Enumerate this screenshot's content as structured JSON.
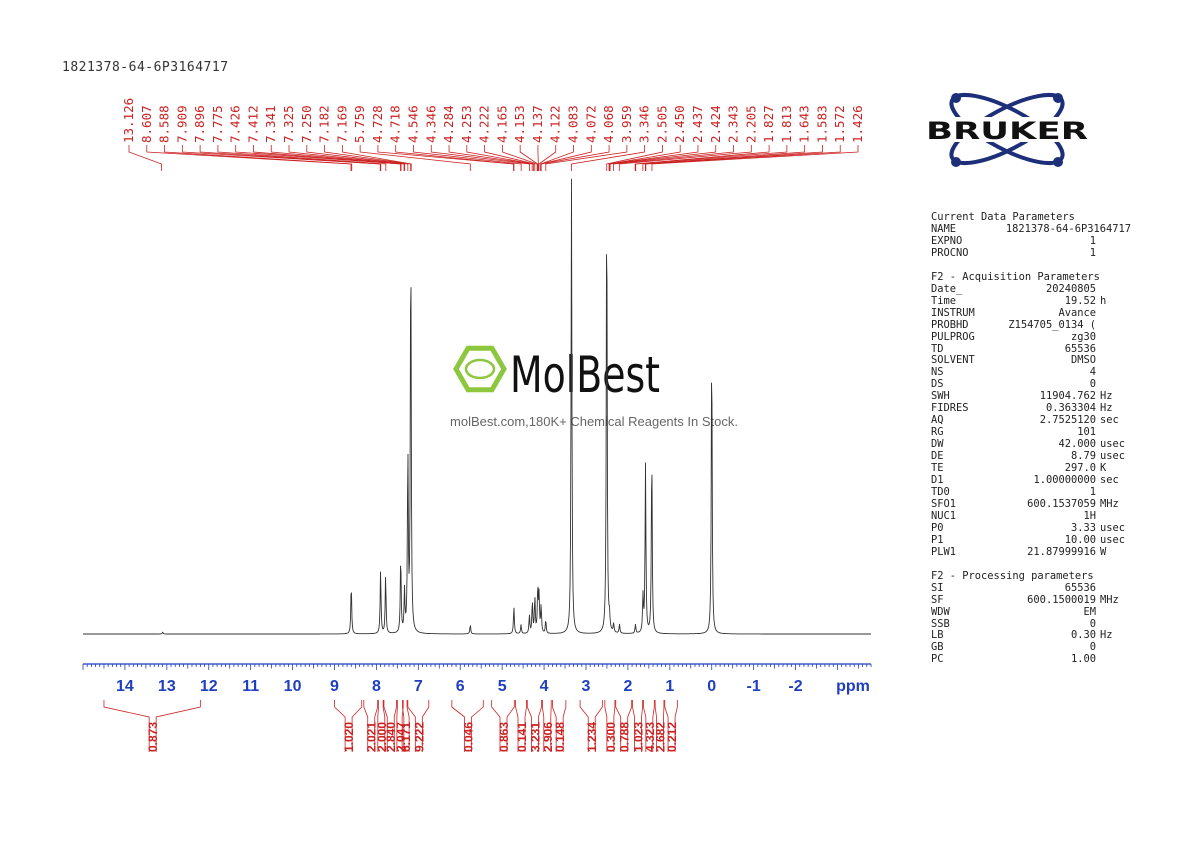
{
  "sample_id": "1821378-64-6P3164717",
  "watermark": {
    "brand": "MolBest",
    "tagline": "molBest.com,180K+ Chemical Reagents In Stock."
  },
  "bruker_logo": {
    "text": "BRUKER"
  },
  "colors": {
    "peak_labels": "#cc2222",
    "axis": "#1f3fbf",
    "spectrum": "#333333",
    "logo_navy": "#1e2f7a",
    "molbest_green": "#8dc63f"
  },
  "chart_data": {
    "type": "line",
    "xlabel": "ppm",
    "xlim": [
      15,
      -3.8
    ],
    "x_ticks": [
      "14",
      "13",
      "12",
      "11",
      "10",
      "9",
      "8",
      "7",
      "6",
      "5",
      "4",
      "3",
      "2",
      "1",
      "0",
      "-1",
      "-2"
    ],
    "peak_labels": [
      "13.126",
      "8.607",
      "8.588",
      "7.909",
      "7.896",
      "7.775",
      "7.426",
      "7.412",
      "7.341",
      "7.325",
      "7.250",
      "7.182",
      "7.169",
      "5.759",
      "4.728",
      "4.718",
      "4.546",
      "4.346",
      "4.284",
      "4.253",
      "4.222",
      "4.165",
      "4.153",
      "4.137",
      "4.122",
      "4.083",
      "4.072",
      "4.068",
      "3.959",
      "3.346",
      "2.505",
      "2.450",
      "2.437",
      "2.424",
      "2.343",
      "2.205",
      "1.827",
      "1.813",
      "1.643",
      "1.583",
      "1.572",
      "1.426"
    ],
    "peak_positions_ppm": [
      13.126,
      8.607,
      8.588,
      7.909,
      7.896,
      7.775,
      7.426,
      7.412,
      7.341,
      7.325,
      7.25,
      7.182,
      7.169,
      5.759,
      4.728,
      4.718,
      4.546,
      4.346,
      4.284,
      4.253,
      4.222,
      4.165,
      4.153,
      4.137,
      4.122,
      4.083,
      4.072,
      4.068,
      3.959,
      3.346,
      2.505,
      2.45,
      2.437,
      2.424,
      2.343,
      2.205,
      1.827,
      1.813,
      1.643,
      1.583,
      1.572,
      1.426
    ],
    "spectrum_peaks": [
      {
        "ppm": 8.6,
        "h": 0.11
      },
      {
        "ppm": 7.9,
        "h": 0.14
      },
      {
        "ppm": 7.78,
        "h": 0.13
      },
      {
        "ppm": 7.42,
        "h": 0.17
      },
      {
        "ppm": 7.33,
        "h": 0.09
      },
      {
        "ppm": 7.25,
        "h": 0.4
      },
      {
        "ppm": 7.18,
        "h": 0.9
      },
      {
        "ppm": 5.76,
        "h": 0.02
      },
      {
        "ppm": 4.72,
        "h": 0.06
      },
      {
        "ppm": 4.55,
        "h": 0.02
      },
      {
        "ppm": 4.35,
        "h": 0.04
      },
      {
        "ppm": 4.28,
        "h": 0.07
      },
      {
        "ppm": 4.22,
        "h": 0.08
      },
      {
        "ppm": 4.15,
        "h": 0.1
      },
      {
        "ppm": 4.12,
        "h": 0.08
      },
      {
        "ppm": 4.07,
        "h": 0.06
      },
      {
        "ppm": 3.96,
        "h": 0.03
      },
      {
        "ppm": 3.346,
        "h": 1.0
      },
      {
        "ppm": 2.505,
        "h": 1.0
      },
      {
        "ppm": 2.44,
        "h": 0.03
      },
      {
        "ppm": 2.34,
        "h": 0.02
      },
      {
        "ppm": 2.2,
        "h": 0.02
      },
      {
        "ppm": 1.82,
        "h": 0.02
      },
      {
        "ppm": 1.64,
        "h": 0.08
      },
      {
        "ppm": 1.58,
        "h": 0.37
      },
      {
        "ppm": 1.43,
        "h": 0.41
      },
      {
        "ppm": 0.0,
        "h": 0.66
      },
      {
        "ppm": 13.1,
        "h": 0.004
      }
    ],
    "integrals": [
      {
        "from": 14.5,
        "to": 12.2,
        "value": "0.873"
      },
      {
        "from": 9.0,
        "to": 8.35,
        "value": "1.020"
      },
      {
        "from": 8.3,
        "to": 7.97,
        "value": "2.021"
      },
      {
        "from": 7.95,
        "to": 7.84,
        "value": "2.000"
      },
      {
        "from": 7.82,
        "to": 7.52,
        "value": "2.840"
      },
      {
        "from": 7.5,
        "to": 7.38,
        "value": "2.047"
      },
      {
        "from": 7.36,
        "to": 7.27,
        "value": "6.171"
      },
      {
        "from": 7.25,
        "to": 6.75,
        "value": "9.222"
      },
      {
        "from": 6.2,
        "to": 5.45,
        "value": "0.046"
      },
      {
        "from": 5.25,
        "to": 4.71,
        "value": "0.863"
      },
      {
        "from": 4.68,
        "to": 4.42,
        "value": "0.141"
      },
      {
        "from": 4.4,
        "to": 4.06,
        "value": "3.231"
      },
      {
        "from": 4.04,
        "to": 3.83,
        "value": "2.906"
      },
      {
        "from": 3.8,
        "to": 3.48,
        "value": "0.148"
      },
      {
        "from": 3.14,
        "to": 2.61,
        "value": "1.234"
      },
      {
        "from": 2.55,
        "to": 2.31,
        "value": "0.300"
      },
      {
        "from": 2.29,
        "to": 1.91,
        "value": "0.788"
      },
      {
        "from": 1.89,
        "to": 1.65,
        "value": "1.023"
      },
      {
        "from": 1.63,
        "to": 1.37,
        "value": "4.323"
      },
      {
        "from": 1.35,
        "to": 1.14,
        "value": "2.682"
      },
      {
        "from": 1.12,
        "to": 0.82,
        "value": "0.212"
      }
    ]
  },
  "parameters": {
    "current": {
      "title": "Current Data Parameters",
      "rows": [
        {
          "k": "NAME",
          "v": "1821378-64-6P3164717",
          "u": ""
        },
        {
          "k": "EXPNO",
          "v": "1",
          "u": ""
        },
        {
          "k": "PROCNO",
          "v": "1",
          "u": ""
        }
      ]
    },
    "acquisition": {
      "title": "F2 - Acquisition Parameters",
      "rows": [
        {
          "k": "Date_",
          "v": "20240805",
          "u": ""
        },
        {
          "k": "Time",
          "v": "19.52",
          "u": "h"
        },
        {
          "k": "INSTRUM",
          "v": "Avance",
          "u": ""
        },
        {
          "k": "PROBHD",
          "v": "Z154705_0134 (",
          "u": ""
        },
        {
          "k": "PULPROG",
          "v": "zg30",
          "u": ""
        },
        {
          "k": "TD",
          "v": "65536",
          "u": ""
        },
        {
          "k": "SOLVENT",
          "v": "DMSO",
          "u": ""
        },
        {
          "k": "NS",
          "v": "4",
          "u": ""
        },
        {
          "k": "DS",
          "v": "0",
          "u": ""
        },
        {
          "k": "SWH",
          "v": "11904.762",
          "u": "Hz"
        },
        {
          "k": "FIDRES",
          "v": "0.363304",
          "u": "Hz"
        },
        {
          "k": "AQ",
          "v": "2.7525120",
          "u": "sec"
        },
        {
          "k": "RG",
          "v": "101",
          "u": ""
        },
        {
          "k": "DW",
          "v": "42.000",
          "u": "usec"
        },
        {
          "k": "DE",
          "v": "8.79",
          "u": "usec"
        },
        {
          "k": "TE",
          "v": "297.0",
          "u": "K"
        },
        {
          "k": "D1",
          "v": "1.00000000",
          "u": "sec"
        },
        {
          "k": "TD0",
          "v": "1",
          "u": ""
        },
        {
          "k": "SFO1",
          "v": "600.1537059",
          "u": "MHz"
        },
        {
          "k": "NUC1",
          "v": "1H",
          "u": ""
        },
        {
          "k": "P0",
          "v": "3.33",
          "u": "usec"
        },
        {
          "k": "P1",
          "v": "10.00",
          "u": "usec"
        },
        {
          "k": "PLW1",
          "v": "21.87999916",
          "u": "W"
        }
      ]
    },
    "processing": {
      "title": "F2 - Processing parameters",
      "rows": [
        {
          "k": "SI",
          "v": "65536",
          "u": ""
        },
        {
          "k": "SF",
          "v": "600.1500019",
          "u": "MHz"
        },
        {
          "k": "WDW",
          "v": "EM",
          "u": ""
        },
        {
          "k": "SSB",
          "v": "0",
          "u": ""
        },
        {
          "k": "LB",
          "v": "0.30",
          "u": "Hz"
        },
        {
          "k": "GB",
          "v": "0",
          "u": ""
        },
        {
          "k": "PC",
          "v": "1.00",
          "u": ""
        }
      ]
    }
  }
}
